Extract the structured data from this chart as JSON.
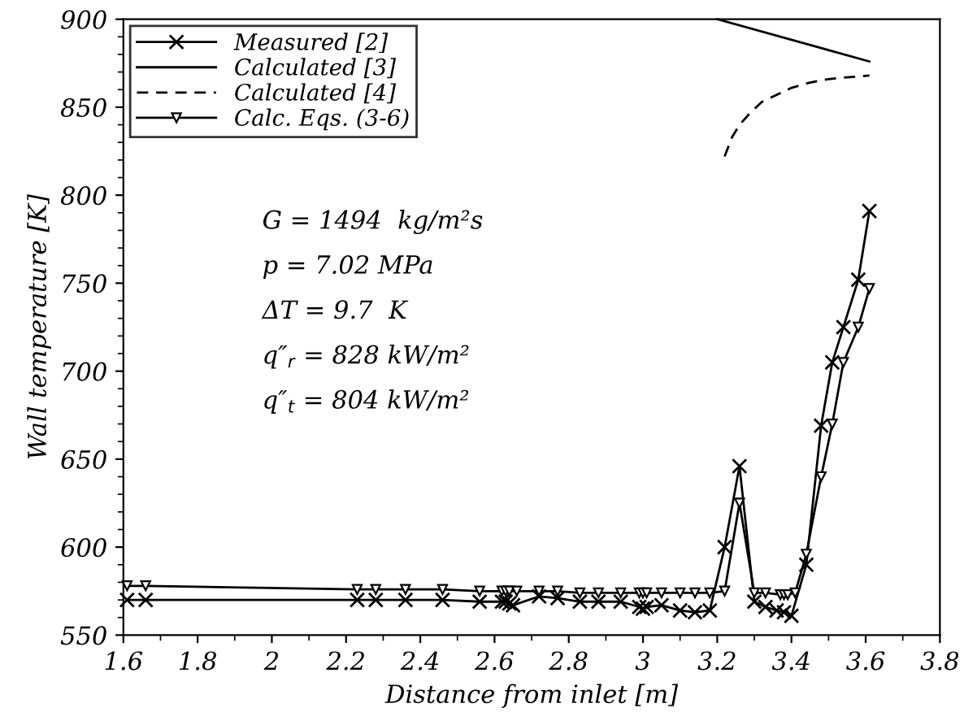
{
  "chart_data": {
    "type": "line",
    "xlabel": "Distance from inlet [m]",
    "ylabel": "Wall temperature [K]",
    "xlim": [
      1.6,
      3.8
    ],
    "ylim": [
      550,
      900
    ],
    "xticks": [
      1.6,
      1.8,
      2,
      2.2,
      2.4,
      2.6,
      2.8,
      3,
      3.2,
      3.4,
      3.6,
      3.8
    ],
    "yticks": [
      550,
      600,
      650,
      700,
      750,
      800,
      850,
      900
    ],
    "grid": false,
    "legend": "top left",
    "series": [
      {
        "name": "Measured [2]",
        "color": "#000000",
        "marker": "cross",
        "line_style": "solid",
        "x": [
          1.61,
          1.66,
          2.23,
          2.28,
          2.36,
          2.46,
          2.56,
          2.62,
          2.63,
          2.64,
          2.65,
          2.72,
          2.77,
          2.83,
          2.88,
          2.94,
          2.99,
          3.0,
          3.01,
          3.05,
          3.1,
          3.14,
          3.18,
          3.22,
          3.26,
          3.3,
          3.33,
          3.36,
          3.38,
          3.4,
          3.44,
          3.48,
          3.51,
          3.54,
          3.58,
          3.61
        ],
        "values": [
          570,
          570,
          570,
          570,
          570,
          570,
          569,
          569,
          569,
          568,
          567,
          572,
          571,
          569,
          569,
          569,
          566,
          565,
          566,
          567,
          564,
          563,
          564,
          600,
          646,
          569,
          566,
          564,
          563,
          561,
          590,
          669,
          705,
          725,
          752,
          791
        ]
      },
      {
        "name": "Calculated [3]",
        "color": "#000000",
        "marker": "none",
        "line_style": "solid",
        "x": [
          3.2,
          3.61
        ],
        "values": [
          900,
          876
        ]
      },
      {
        "name": "Calculated [4]",
        "color": "#000000",
        "marker": "none",
        "line_style": "dashed",
        "x": [
          3.22,
          3.24,
          3.26,
          3.29,
          3.32,
          3.36,
          3.4,
          3.45,
          3.5,
          3.55,
          3.61
        ],
        "values": [
          822,
          833,
          840,
          847,
          853,
          857,
          861,
          864,
          866,
          867,
          868
        ]
      },
      {
        "name": "Calc. Eqs. (3-6)",
        "color": "#000000",
        "marker": "triangle",
        "line_style": "solid",
        "x": [
          1.61,
          1.66,
          2.23,
          2.28,
          2.36,
          2.46,
          2.56,
          2.62,
          2.63,
          2.64,
          2.66,
          2.72,
          2.77,
          2.83,
          2.88,
          2.94,
          2.99,
          3.0,
          3.01,
          3.05,
          3.1,
          3.14,
          3.18,
          3.22,
          3.26,
          3.3,
          3.33,
          3.37,
          3.38,
          3.39,
          3.41,
          3.44,
          3.48,
          3.51,
          3.54,
          3.58,
          3.61
        ],
        "values": [
          578,
          578,
          576,
          576,
          576,
          576,
          575,
          575,
          575,
          575,
          575,
          575,
          575,
          574,
          574,
          574,
          574,
          574,
          574,
          574,
          574,
          574,
          574,
          575,
          625,
          574,
          574,
          573,
          573,
          573,
          574,
          596,
          640,
          670,
          705,
          725,
          747
        ]
      }
    ],
    "annotations": [
      "G = 1494  kg/m²s",
      "p = 7.02 MPa",
      "ΔT = 9.7  K",
      "q″$_{r}$ = 828 kW/m²",
      "q″$_{t}$ = 804 kW/m²"
    ]
  }
}
